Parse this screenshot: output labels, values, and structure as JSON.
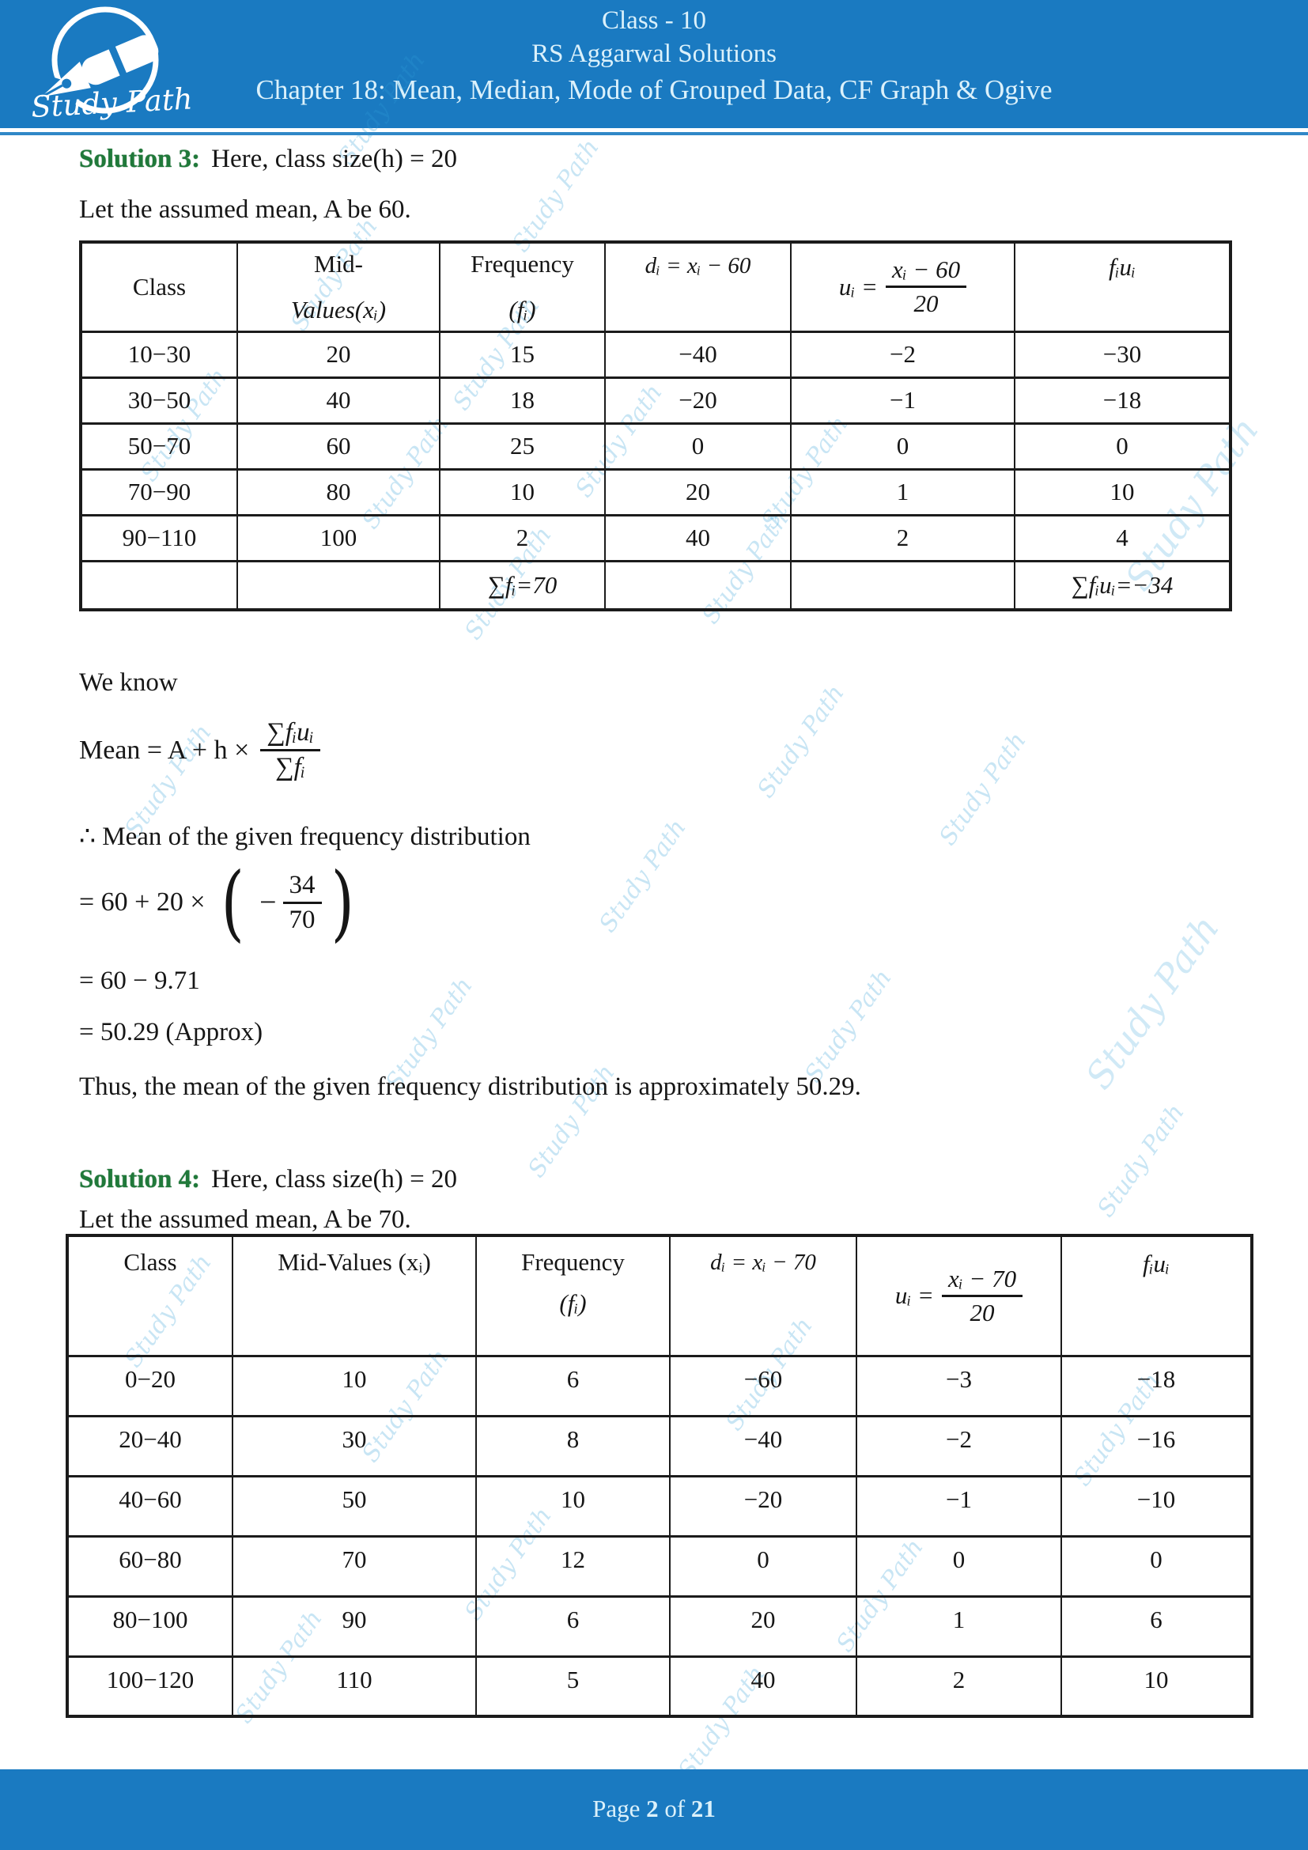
{
  "header": {
    "logo_text": "Study Path",
    "class_line": "Class - 10",
    "book_line": "RS Aggarwal Solutions",
    "chapter_line": "Chapter 18: Mean, Median, Mode of Grouped Data, CF Graph & Ogive"
  },
  "watermark": {
    "text": "Study Path"
  },
  "colors": {
    "banner_blue": "#1a7ac1",
    "banner_text": "#dbf1fb",
    "solution_green": "#20793a",
    "watermark_blue": "#2f9fd8"
  },
  "solution3": {
    "label": "Solution 3:",
    "intro": "Here, class size(h) = 20",
    "assumed_line": "Let the assumed mean, A be 60.",
    "table": {
      "col_class": "Class",
      "col_mid_line1": "Mid-",
      "col_mid_line2": "Values(xᵢ)",
      "col_freq_line1": "Frequency",
      "col_freq_line2": "(fᵢ)",
      "col_d": "dᵢ = xᵢ − 60",
      "col_u_prefix": "uᵢ =",
      "col_u_num": "xᵢ − 60",
      "col_u_den": "20",
      "col_fu": "fᵢuᵢ",
      "rows": [
        [
          "10−30",
          "20",
          "15",
          "−40",
          "−2",
          "−30"
        ],
        [
          "30−50",
          "40",
          "18",
          "−20",
          "−1",
          "−18"
        ],
        [
          "50−70",
          "60",
          "25",
          "0",
          "0",
          "0"
        ],
        [
          "70−90",
          "80",
          "10",
          "20",
          "1",
          "10"
        ],
        [
          "90−110",
          "100",
          "2",
          "40",
          "2",
          "4"
        ]
      ],
      "sum_f": "∑fᵢ=70",
      "sum_fu": "∑fᵢuᵢ=−34"
    },
    "we_know": "We know",
    "mean_lhs": "Mean  = A + h ×",
    "mean_num": "∑fᵢuᵢ",
    "mean_den": "∑fᵢ",
    "therefore_line": "∴ Mean of the given frequency distribution",
    "eq1_lhs": "=  60 + 20  ×",
    "eq1_open": "(",
    "eq1_minus": "−",
    "eq1_num": "34",
    "eq1_den": "70",
    "eq1_close": ")",
    "eq2": "=  60 − 9.71",
    "eq3": "=  50.29 (Approx)",
    "conclusion": "Thus, the mean of the given frequency distribution is approximately 50.29."
  },
  "solution4": {
    "label": "Solution 4:",
    "intro": "Here, class size(h) = 20",
    "assumed_line": "Let the assumed mean, A be 70.",
    "table": {
      "col_class": "Class",
      "col_mid": "Mid-Values (xᵢ)",
      "col_freq_line1": "Frequency",
      "col_freq_line2": "(fᵢ)",
      "col_d": "dᵢ = xᵢ − 70",
      "col_u_prefix": "uᵢ =",
      "col_u_num": "xᵢ − 70",
      "col_u_den": "20",
      "col_fu": "fᵢuᵢ",
      "rows": [
        [
          "0−20",
          "10",
          "6",
          "−60",
          "−3",
          "−18"
        ],
        [
          "20−40",
          "30",
          "8",
          "−40",
          "−2",
          "−16"
        ],
        [
          "40−60",
          "50",
          "10",
          "−20",
          "−1",
          "−10"
        ],
        [
          "60−80",
          "70",
          "12",
          "0",
          "0",
          "0"
        ],
        [
          "80−100",
          "90",
          "6",
          "20",
          "1",
          "6"
        ],
        [
          "100−120",
          "110",
          "5",
          "40",
          "2",
          "10"
        ]
      ]
    }
  },
  "footer": {
    "page_word": "Page",
    "page_num": "2",
    "of_word": "of",
    "total": "21"
  }
}
